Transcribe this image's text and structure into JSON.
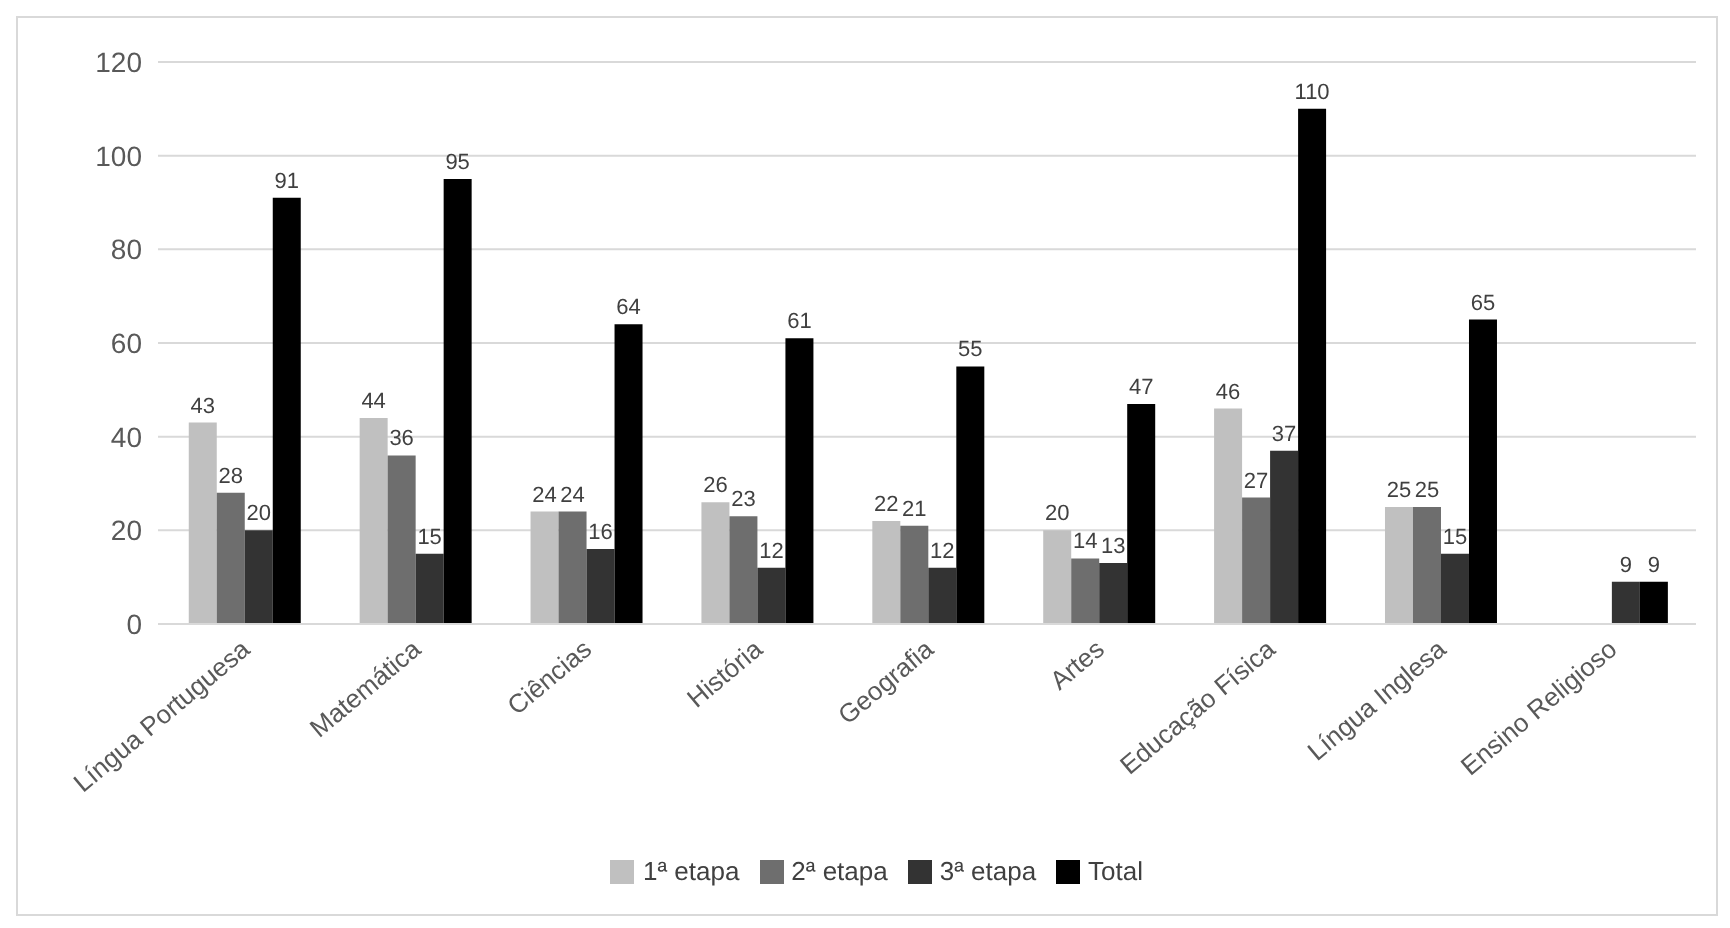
{
  "chart_data": {
    "type": "bar",
    "categories": [
      "Língua Portuguesa",
      "Matemática",
      "Ciências",
      "História",
      "Geografia",
      "Artes",
      "Educação Física",
      "Língua Inglesa",
      "Ensino Religioso"
    ],
    "series": [
      {
        "name": "1ª etapa",
        "color": "#c0c0c0",
        "values": [
          43,
          44,
          24,
          26,
          22,
          20,
          46,
          25,
          null
        ]
      },
      {
        "name": "2ª etapa",
        "color": "#6e6e6e",
        "values": [
          28,
          36,
          24,
          23,
          21,
          14,
          27,
          25,
          null
        ]
      },
      {
        "name": "3ª etapa",
        "color": "#333333",
        "values": [
          20,
          15,
          16,
          12,
          12,
          13,
          37,
          15,
          9
        ]
      },
      {
        "name": "Total",
        "color": "#000000",
        "values": [
          91,
          95,
          64,
          61,
          55,
          47,
          110,
          65,
          9
        ]
      }
    ],
    "ylim": [
      0,
      120
    ],
    "yticks": [
      0,
      20,
      40,
      60,
      80,
      100,
      120
    ],
    "grid": "y",
    "legend": "bottom",
    "data_labels": true
  }
}
